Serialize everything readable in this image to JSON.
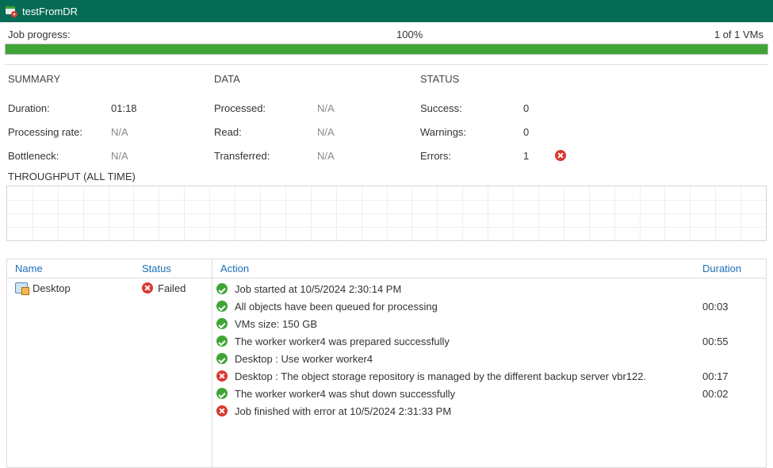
{
  "window": {
    "title": "testFromDR"
  },
  "progress": {
    "label": "Job progress:",
    "percent_text": "100%",
    "percent_value": 100,
    "vm_text": "1 of 1 VMs",
    "bar_fill_color": "#3fa535",
    "bar_bg_color": "#e7e7e7"
  },
  "summary": {
    "heading": "SUMMARY",
    "rows": [
      {
        "label": "Duration:",
        "value": "01:18",
        "na": false
      },
      {
        "label": "Processing rate:",
        "value": "N/A",
        "na": true
      },
      {
        "label": "Bottleneck:",
        "value": "N/A",
        "na": true
      }
    ]
  },
  "data": {
    "heading": "DATA",
    "rows": [
      {
        "label": "Processed:",
        "value": "N/A",
        "na": true
      },
      {
        "label": "Read:",
        "value": "N/A",
        "na": true
      },
      {
        "label": "Transferred:",
        "value": "N/A",
        "na": true
      }
    ]
  },
  "status": {
    "heading": "STATUS",
    "rows": [
      {
        "label": "Success:",
        "value": "0",
        "icon": ""
      },
      {
        "label": "Warnings:",
        "value": "0",
        "icon": ""
      },
      {
        "label": "Errors:",
        "value": "1",
        "icon": "err"
      }
    ]
  },
  "throughput": {
    "heading": "THROUGHPUT (ALL TIME)",
    "vlines": 30,
    "hlines": 3,
    "grid_color": "#eeeeee",
    "border_color": "#d5d5d5"
  },
  "objects": {
    "columns": {
      "name": "Name",
      "status": "Status"
    },
    "rows": [
      {
        "name": "Desktop",
        "status_text": "Failed",
        "status_icon": "err"
      }
    ]
  },
  "actions": {
    "columns": {
      "action": "Action",
      "duration": "Duration"
    },
    "rows": [
      {
        "icon": "ok",
        "text": "Job started at 10/5/2024 2:30:14 PM",
        "duration": ""
      },
      {
        "icon": "ok",
        "text": "All objects have been queued for processing",
        "duration": "00:03"
      },
      {
        "icon": "ok",
        "text": "VMs size: 150 GB",
        "duration": ""
      },
      {
        "icon": "ok",
        "text": "The worker worker4 was prepared successfully",
        "duration": "00:55"
      },
      {
        "icon": "ok",
        "text": "Desktop : Use worker worker4",
        "duration": ""
      },
      {
        "icon": "err",
        "text": "Desktop : The object storage repository is managed by the different backup server vbr122.",
        "duration": "00:17"
      },
      {
        "icon": "ok",
        "text": "The worker worker4 was shut down successfully",
        "duration": "00:02"
      },
      {
        "icon": "err",
        "text": "Job finished with error at 10/5/2024 2:31:33 PM",
        "duration": ""
      }
    ]
  },
  "colors": {
    "titlebar_bg": "#066b54",
    "link": "#1a6fb8",
    "ok": "#3fa535",
    "err": "#d93a2f"
  }
}
